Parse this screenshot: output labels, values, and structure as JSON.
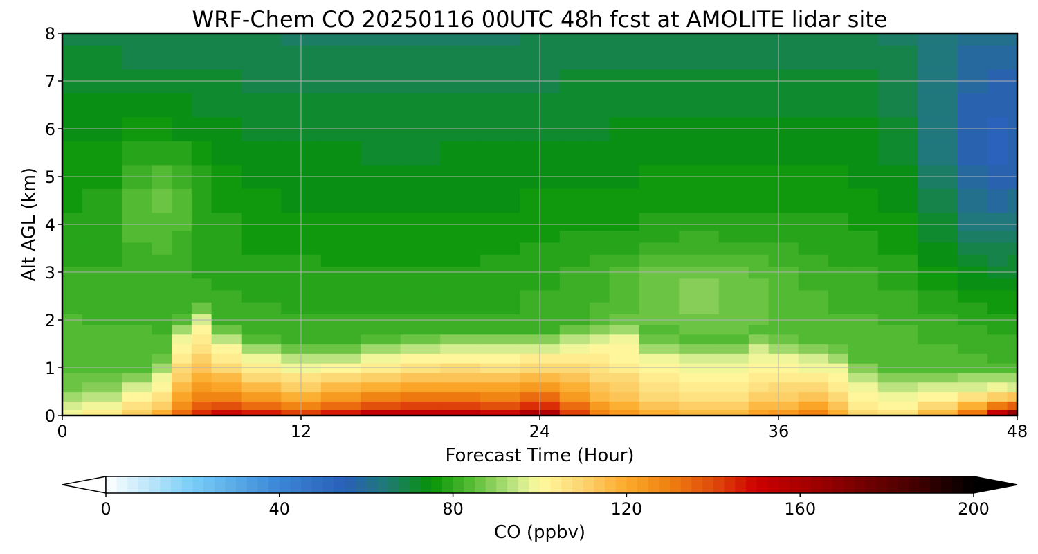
{
  "chart_data": {
    "type": "heatmap",
    "title": "WRF-Chem CO  20250116 00UTC 48h fcst at AMOLITE lidar site",
    "xlabel": "Forecast Time (Hour)",
    "ylabel": "Alt AGL (km)",
    "xlim": [
      0,
      48
    ],
    "ylim": [
      0,
      8
    ],
    "xticks": [
      0,
      12,
      24,
      36,
      48
    ],
    "yticks": [
      0,
      1,
      2,
      3,
      4,
      5,
      6,
      7,
      8
    ],
    "grid": true,
    "x": [
      0,
      2,
      4,
      5,
      6,
      7,
      8,
      10,
      12,
      14,
      16,
      18,
      20,
      22,
      24,
      26,
      27,
      28,
      30,
      32,
      34,
      35,
      36,
      38,
      39,
      40,
      42,
      44,
      46,
      47,
      48
    ],
    "y": [
      0.05,
      0.2,
      0.4,
      0.6,
      0.8,
      1.0,
      1.2,
      1.4,
      1.6,
      1.8,
      2.0,
      2.25,
      2.5,
      2.75,
      3.0,
      3.25,
      3.5,
      3.75,
      4.0,
      4.5,
      5.0,
      5.5,
      6.0,
      6.5,
      7.0,
      7.5,
      8.0
    ],
    "boundary_layer_top_km": [
      0.15,
      0.25,
      0.5,
      0.8,
      1.6,
      1.95,
      1.5,
      1.2,
      1.05,
      1.1,
      1.2,
      1.3,
      1.35,
      1.35,
      1.35,
      1.45,
      1.55,
      1.6,
      1.2,
      1.1,
      1.1,
      1.3,
      1.2,
      1.1,
      1.0,
      0.65,
      0.45,
      0.5,
      0.55,
      0.6,
      0.55
    ],
    "surface_co_ppbv": [
      102,
      108,
      118,
      125,
      140,
      150,
      158,
      156,
      150,
      158,
      164,
      166,
      164,
      160,
      170,
      150,
      135,
      128,
      122,
      120,
      120,
      125,
      128,
      135,
      125,
      112,
      110,
      125,
      145,
      170,
      190
    ],
    "elevated_plume": {
      "x_center": 5.0,
      "y_center": 4.6,
      "x_halfwidth": 2.0,
      "y_halfwidth": 1.3,
      "peak_ppbv": 93
    },
    "mid_plume": {
      "x_center": 32.0,
      "y_center": 2.7,
      "x_halfwidth": 4.5,
      "y_halfwidth": 0.9,
      "peak_ppbv": 92
    },
    "upper_minimum": {
      "x_center": 47.0,
      "y_center": 5.5,
      "x_halfwidth": 3.5,
      "y_halfwidth": 2.5,
      "min_ppbv": 66
    },
    "colorbar": {
      "label": "CO  (ppbv)",
      "vmin": 0,
      "vmax": 200,
      "ticks": [
        0,
        40,
        80,
        120,
        160,
        200
      ],
      "step": 2.5,
      "extend": "both",
      "colors": [
        {
          "value": 0,
          "color": "#ffffff"
        },
        {
          "value": 20,
          "color": "#79cdf6"
        },
        {
          "value": 40,
          "color": "#3b85d6"
        },
        {
          "value": 55,
          "color": "#2a5fb8"
        },
        {
          "value": 65,
          "color": "#1f7a73"
        },
        {
          "value": 75,
          "color": "#069306"
        },
        {
          "value": 85,
          "color": "#5ebf3a"
        },
        {
          "value": 95,
          "color": "#c8e88a"
        },
        {
          "value": 100,
          "color": "#fffaa0"
        },
        {
          "value": 110,
          "color": "#fdd470"
        },
        {
          "value": 120,
          "color": "#fbaa2a"
        },
        {
          "value": 130,
          "color": "#f08010"
        },
        {
          "value": 140,
          "color": "#e04a0a"
        },
        {
          "value": 150,
          "color": "#cc0000"
        },
        {
          "value": 165,
          "color": "#9a0000"
        },
        {
          "value": 185,
          "color": "#4a0000"
        },
        {
          "value": 200,
          "color": "#000000"
        }
      ]
    }
  }
}
